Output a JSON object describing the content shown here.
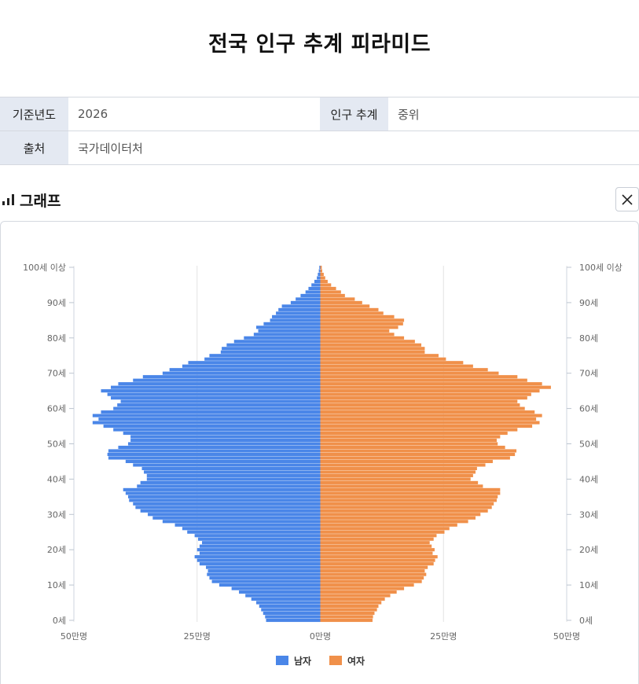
{
  "page": {
    "title": "전국 인구 추계 피라미드"
  },
  "info": {
    "year_label": "기준년도",
    "year_value": "2026",
    "projection_label": "인구 추계",
    "projection_value": "중위",
    "source_label": "출처",
    "source_value": "국가데이터처"
  },
  "graph": {
    "title": "그래프"
  },
  "colors": {
    "male": "#4a86e8",
    "female": "#f0904a",
    "label_bg": "#e4e9f2"
  },
  "icons": {
    "graph": "bar-chart-icon",
    "close": "close-icon"
  },
  "chart_data": {
    "type": "bar",
    "orientation": "horizontal-pyramid",
    "unit": "명",
    "xlim": [
      -500000,
      500000
    ],
    "x_ticks": [
      {
        "value": -500000,
        "label": "50만명"
      },
      {
        "value": -250000,
        "label": "25만명"
      },
      {
        "value": 0,
        "label": "0만명"
      },
      {
        "value": 250000,
        "label": "25만명"
      },
      {
        "value": 500000,
        "label": "50만명"
      }
    ],
    "y_ticks": [
      {
        "age": 0,
        "label": "0세"
      },
      {
        "age": 10,
        "label": "10세"
      },
      {
        "age": 20,
        "label": "20세"
      },
      {
        "age": 30,
        "label": "30세"
      },
      {
        "age": 40,
        "label": "40세"
      },
      {
        "age": 50,
        "label": "50세"
      },
      {
        "age": 60,
        "label": "60세"
      },
      {
        "age": 70,
        "label": "70세"
      },
      {
        "age": 80,
        "label": "80세"
      },
      {
        "age": 90,
        "label": "90세"
      },
      {
        "age": 100,
        "label": "100세 이상"
      }
    ],
    "ages": [
      0,
      1,
      2,
      3,
      4,
      5,
      6,
      7,
      8,
      9,
      10,
      11,
      12,
      13,
      14,
      15,
      16,
      17,
      18,
      19,
      20,
      21,
      22,
      23,
      24,
      25,
      26,
      27,
      28,
      29,
      30,
      31,
      32,
      33,
      34,
      35,
      36,
      37,
      38,
      39,
      40,
      41,
      42,
      43,
      44,
      45,
      46,
      47,
      48,
      49,
      50,
      51,
      52,
      53,
      54,
      55,
      56,
      57,
      58,
      59,
      60,
      61,
      62,
      63,
      64,
      65,
      66,
      67,
      68,
      69,
      70,
      71,
      72,
      73,
      74,
      75,
      76,
      77,
      78,
      79,
      80,
      81,
      82,
      83,
      84,
      85,
      86,
      87,
      88,
      89,
      90,
      91,
      92,
      93,
      94,
      95,
      96,
      97,
      98,
      99,
      100
    ],
    "series": [
      {
        "name": "남자",
        "values": [
          110000,
          112000,
          116000,
          120000,
          124000,
          130000,
          140000,
          152000,
          165000,
          180000,
          205000,
          220000,
          225000,
          230000,
          228000,
          232000,
          245000,
          250000,
          255000,
          245000,
          250000,
          245000,
          240000,
          248000,
          255000,
          270000,
          280000,
          295000,
          320000,
          340000,
          350000,
          365000,
          375000,
          380000,
          388000,
          390000,
          395000,
          400000,
          372000,
          365000,
          352000,
          352000,
          358000,
          362000,
          380000,
          395000,
          430000,
          432000,
          430000,
          410000,
          390000,
          385000,
          385000,
          400000,
          420000,
          440000,
          462000,
          450000,
          462000,
          445000,
          420000,
          412000,
          405000,
          425000,
          432000,
          445000,
          425000,
          410000,
          380000,
          360000,
          320000,
          306000,
          280000,
          268000,
          235000,
          225000,
          202000,
          200000,
          190000,
          175000,
          155000,
          135000,
          126000,
          130000,
          115000,
          102000,
          98000,
          90000,
          85000,
          78000,
          60000,
          50000,
          40000,
          30000,
          24000,
          18000,
          12000,
          7000,
          5000,
          3000,
          2000
        ]
      },
      {
        "name": "여자",
        "values": [
          106000,
          107000,
          110000,
          115000,
          118000,
          124000,
          131000,
          142000,
          155000,
          170000,
          190000,
          206000,
          210000,
          215000,
          212000,
          218000,
          230000,
          233000,
          238000,
          228000,
          232000,
          226000,
          222000,
          230000,
          236000,
          252000,
          262000,
          278000,
          300000,
          315000,
          325000,
          340000,
          348000,
          352000,
          358000,
          360000,
          365000,
          365000,
          330000,
          320000,
          305000,
          310000,
          315000,
          318000,
          335000,
          350000,
          385000,
          395000,
          398000,
          375000,
          360000,
          358000,
          365000,
          380000,
          400000,
          430000,
          445000,
          438000,
          450000,
          435000,
          415000,
          405000,
          400000,
          420000,
          428000,
          445000,
          468000,
          450000,
          420000,
          400000,
          362000,
          340000,
          310000,
          290000,
          255000,
          240000,
          212000,
          212000,
          205000,
          192000,
          170000,
          150000,
          140000,
          158000,
          168000,
          170000,
          150000,
          128000,
          118000,
          100000,
          85000,
          70000,
          50000,
          42000,
          32000,
          22000,
          15000,
          10000,
          7000,
          4000,
          3000
        ]
      }
    ],
    "legend": {
      "placement": "bottom-center"
    },
    "grid": true
  }
}
